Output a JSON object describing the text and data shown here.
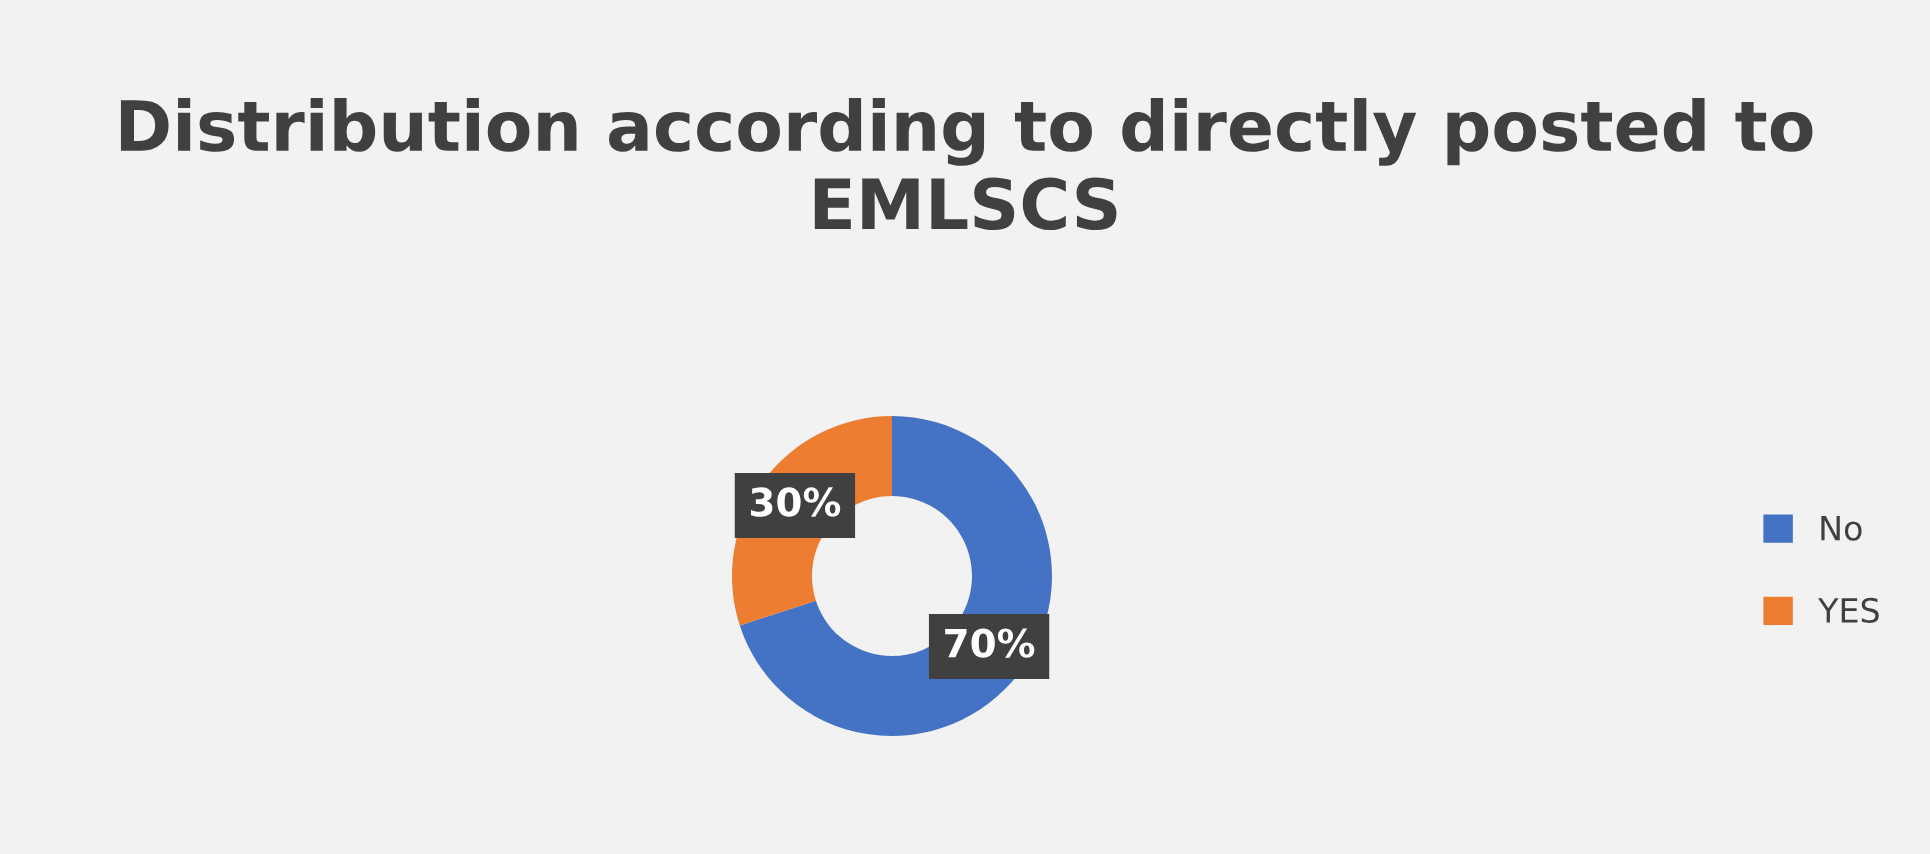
{
  "chart_data": {
    "type": "donut",
    "title": "Distribution according to directly posted to EMLSCS",
    "categories": [
      "No",
      "YES"
    ],
    "values": [
      70,
      30
    ],
    "colors": [
      "#4472c4",
      "#ed7d31"
    ],
    "value_labels": [
      "70%",
      "30%"
    ],
    "legend": "right"
  }
}
